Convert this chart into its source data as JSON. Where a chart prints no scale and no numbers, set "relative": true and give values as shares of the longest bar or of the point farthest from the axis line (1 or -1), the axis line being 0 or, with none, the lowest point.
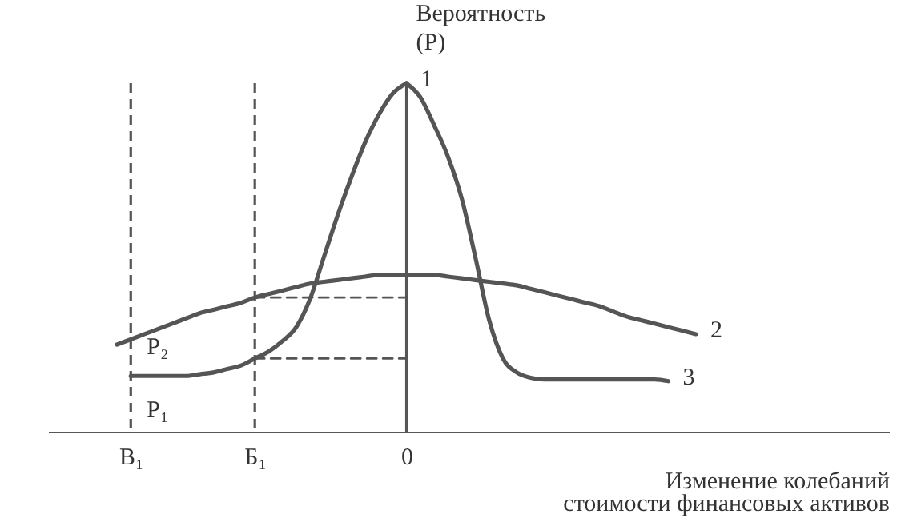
{
  "chart_data": {
    "type": "line",
    "relative": true,
    "ylabel": "Вероятность\n(P)",
    "xlabel": "Изменение колебаний\nстоимости финансовых активов",
    "categories": [
      null,
      null,
      null,
      null,
      null,
      null,
      "B₁",
      null,
      null,
      null,
      null,
      null,
      null,
      null,
      null,
      "Б₁",
      null,
      null,
      null,
      null,
      null,
      null,
      null,
      null,
      null,
      null,
      "0",
      null,
      null,
      null,
      null,
      null,
      null,
      null,
      null,
      null,
      null,
      null,
      null,
      null,
      null,
      null,
      null,
      null,
      null,
      null,
      null,
      null,
      null,
      null,
      null,
      null,
      null,
      null,
      null,
      null,
      null,
      null,
      null,
      null,
      null,
      null
    ],
    "series": [
      {
        "name": "1",
        "color": "#555555",
        "values": [
          null,
          null,
          null,
          null,
          null,
          null,
          0.16,
          0.16,
          0.16,
          0.16,
          0.16,
          0.165,
          0.17,
          0.18,
          0.19,
          0.21,
          0.23,
          0.26,
          0.3,
          0.38,
          0.5,
          0.62,
          0.73,
          0.83,
          0.91,
          0.97,
          1,
          null,
          null,
          null,
          null,
          null,
          null,
          null,
          null,
          null,
          null,
          null,
          null,
          null,
          null,
          null,
          null,
          null,
          null,
          null,
          null,
          null,
          null,
          null,
          null,
          null,
          null,
          null,
          null,
          null,
          null,
          null,
          null,
          null,
          null,
          null
        ]
      },
      {
        "name": "2",
        "color": "#555555",
        "values": [
          null,
          null,
          null,
          null,
          null,
          0.25,
          0.265,
          0.28,
          0.295,
          0.31,
          0.325,
          0.34,
          0.35,
          0.36,
          0.37,
          0.385,
          0.395,
          0.405,
          0.415,
          0.425,
          0.43,
          0.435,
          0.44,
          0.445,
          0.45,
          0.45,
          0.45,
          0.45,
          0.45,
          0.445,
          0.44,
          0.435,
          0.43,
          0.425,
          0.42,
          0.41,
          0.4,
          0.39,
          0.38,
          0.37,
          0.36,
          0.345,
          0.33,
          0.32,
          0.31,
          0.3,
          0.29,
          0.28,
          null,
          null,
          null,
          null,
          null,
          null,
          null,
          null,
          null,
          null,
          null,
          null,
          null,
          null
        ]
      },
      {
        "name": "3",
        "color": "#555555",
        "values": [
          null,
          null,
          null,
          null,
          null,
          null,
          null,
          null,
          null,
          null,
          null,
          null,
          null,
          null,
          null,
          null,
          null,
          null,
          null,
          null,
          null,
          null,
          null,
          null,
          null,
          null,
          1,
          0.96,
          0.88,
          0.79,
          0.67,
          0.5,
          0.32,
          0.21,
          0.17,
          0.155,
          0.15,
          0.15,
          0.15,
          0.15,
          0.15,
          0.15,
          0.15,
          0.15,
          0.15,
          0.145,
          null,
          null,
          null,
          null,
          null,
          null,
          null,
          null,
          null,
          null,
          null,
          null,
          null,
          null,
          null,
          null
        ]
      },
      {
        "color": "#555555",
        "line_style": "dashed",
        "values": [
          null,
          null,
          null,
          null,
          null,
          null,
          null,
          null,
          null,
          null,
          null,
          null,
          null,
          null,
          null,
          0.385,
          0.385,
          0.385,
          0.385,
          0.385,
          0.385,
          0.385,
          0.385,
          0.385,
          0.385,
          0.385,
          0.385,
          null,
          null,
          null,
          null,
          null,
          null,
          null,
          null,
          null,
          null,
          null,
          null,
          null,
          null,
          null,
          null,
          null,
          null,
          null,
          null,
          null,
          null,
          null,
          null,
          null,
          null,
          null,
          null,
          null,
          null,
          null,
          null,
          null,
          null,
          null
        ]
      },
      {
        "color": "#555555",
        "line_style": "dashed",
        "values": [
          null,
          null,
          null,
          null,
          null,
          null,
          null,
          null,
          null,
          null,
          null,
          null,
          null,
          null,
          null,
          0.21,
          0.21,
          0.21,
          0.21,
          0.21,
          0.21,
          0.21,
          0.21,
          0.21,
          0.21,
          0.21,
          0.21,
          null,
          null,
          null,
          null,
          null,
          null,
          null,
          null,
          null,
          null,
          null,
          null,
          null,
          null,
          null,
          null,
          null,
          null,
          null,
          null,
          null,
          null,
          null,
          null,
          null,
          null,
          null,
          null,
          null,
          null,
          null,
          null,
          null,
          null,
          null
        ]
      }
    ],
    "ref_lines": [
      {
        "axis": "x",
        "value": "0",
        "color": "#555555"
      },
      {
        "axis": "x",
        "value": "B₁",
        "color": "#555555",
        "line_style": "dashed"
      },
      {
        "axis": "x",
        "value": "Б₁",
        "color": "#555555",
        "line_style": "dashed"
      }
    ],
    "annotations": [
      {
        "text": "P₂",
        "x": "B₁",
        "y": 0.245
      },
      {
        "text": "P₁",
        "x": "B₁",
        "y": 0.064
      }
    ]
  }
}
